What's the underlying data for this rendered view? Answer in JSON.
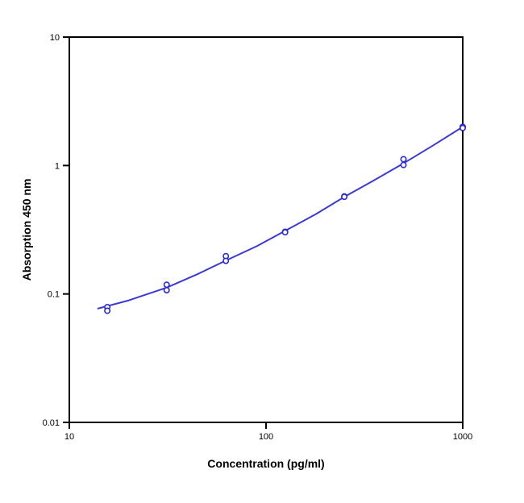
{
  "chart_data": {
    "type": "scatter",
    "title": "",
    "xlabel": "Concentration (pg/ml)",
    "ylabel": "Absorption 450 nm",
    "xscale": "log",
    "yscale": "log",
    "xlim": [
      10,
      1000
    ],
    "ylim": [
      0.01,
      10
    ],
    "x_ticks": [
      10,
      100,
      1000
    ],
    "x_tick_labels": [
      "10",
      "100",
      "1000"
    ],
    "y_ticks": [
      0.01,
      0.1,
      1,
      10
    ],
    "y_tick_labels": [
      "0.01",
      "0.1",
      "1",
      "10"
    ],
    "grid": false,
    "legend": "none",
    "point_color": "#2b2bd6",
    "curve_color": "#3a3ad8",
    "series": [
      {
        "type": "scatter",
        "points": [
          {
            "x": 15.6,
            "y": 0.079
          },
          {
            "x": 15.6,
            "y": 0.074
          },
          {
            "x": 31.25,
            "y": 0.118
          },
          {
            "x": 31.25,
            "y": 0.107
          },
          {
            "x": 62.5,
            "y": 0.197
          },
          {
            "x": 62.5,
            "y": 0.181
          },
          {
            "x": 125,
            "y": 0.305
          },
          {
            "x": 125,
            "y": 0.302
          },
          {
            "x": 250,
            "y": 0.575
          },
          {
            "x": 250,
            "y": 0.57
          },
          {
            "x": 500,
            "y": 1.12
          },
          {
            "x": 500,
            "y": 1.01
          },
          {
            "x": 1000,
            "y": 2.0
          },
          {
            "x": 1000,
            "y": 1.96
          }
        ]
      },
      {
        "type": "line",
        "points": [
          {
            "x": 14,
            "y": 0.077
          },
          {
            "x": 20,
            "y": 0.089
          },
          {
            "x": 31.25,
            "y": 0.112
          },
          {
            "x": 45,
            "y": 0.143
          },
          {
            "x": 62.5,
            "y": 0.182
          },
          {
            "x": 90,
            "y": 0.236
          },
          {
            "x": 125,
            "y": 0.31
          },
          {
            "x": 180,
            "y": 0.42
          },
          {
            "x": 250,
            "y": 0.57
          },
          {
            "x": 350,
            "y": 0.76
          },
          {
            "x": 500,
            "y": 1.04
          },
          {
            "x": 700,
            "y": 1.42
          },
          {
            "x": 1000,
            "y": 2.0
          }
        ]
      }
    ]
  }
}
